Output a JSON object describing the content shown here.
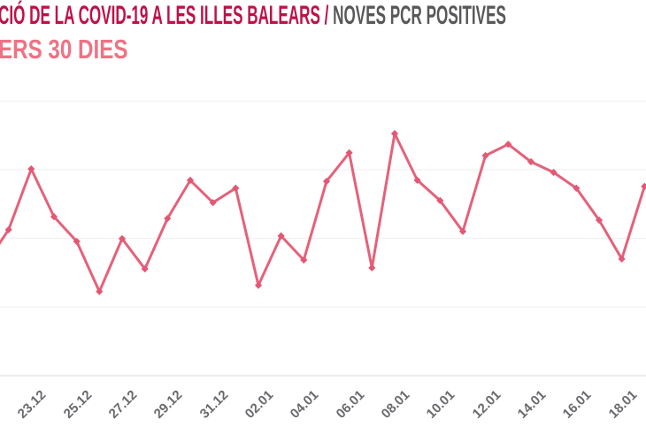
{
  "header": {
    "title_main": "CIÓ DE LA COVID-19 A LES ILLES BALEARS / ",
    "title_secondary": "NOVES PCR POSITIVES",
    "subtitle": "ERS 30 DIES",
    "title_main_color": "#c01049",
    "title_secondary_color": "#58585a",
    "subtitle_color": "#ee7384"
  },
  "chart_data": {
    "type": "line",
    "title": "CIÓ DE LA COVID-19 A LES ILLES BALEARS / NOVES PCR POSITIVES",
    "subtitle": "ERS 30 DIES",
    "series": [
      {
        "name": "Noves PCR positives",
        "color": "#e5617a",
        "marker_color": "#e25873",
        "dates": [
          "21.12",
          "22.12",
          "23.12",
          "24.12",
          "25.12",
          "26.12",
          "27.12",
          "28.12",
          "29.12",
          "30.12",
          "31.12",
          "01.01",
          "02.01",
          "03.01",
          "04.01",
          "05.01",
          "06.01",
          "07.01",
          "08.01",
          "09.01",
          "10.01",
          "11.01",
          "12.01",
          "13.01",
          "14.01",
          "15.01",
          "16.01",
          "17.01",
          "18.01",
          "19.01"
        ],
        "values": [
          327,
          425,
          602,
          463,
          391,
          245,
          399,
          311,
          458,
          569,
          504,
          546,
          263,
          407,
          337,
          566,
          649,
          314,
          705,
          569,
          510,
          420,
          641,
          674,
          623,
          592,
          546,
          453,
          340,
          551
        ]
      }
    ],
    "x_tick_labels": [
      "23.12",
      "25.12",
      "27.12",
      "29.12",
      "31.12",
      "02.01",
      "04.01",
      "06.01",
      "08.01",
      "10.01",
      "12.01",
      "14.01",
      "16.01",
      "18.01"
    ],
    "x_axis": {
      "label_color": "#6a6a6e",
      "label_rotation_deg": -45
    },
    "y_axis": {
      "labels_visible": false,
      "ylim": [
        0,
        850
      ],
      "gridline_values": [
        200,
        400,
        600,
        800
      ],
      "baseline_value": 0
    },
    "grid_color": "#f1eff1",
    "axis_line_color": "#e3e1e3",
    "legend": "none"
  }
}
